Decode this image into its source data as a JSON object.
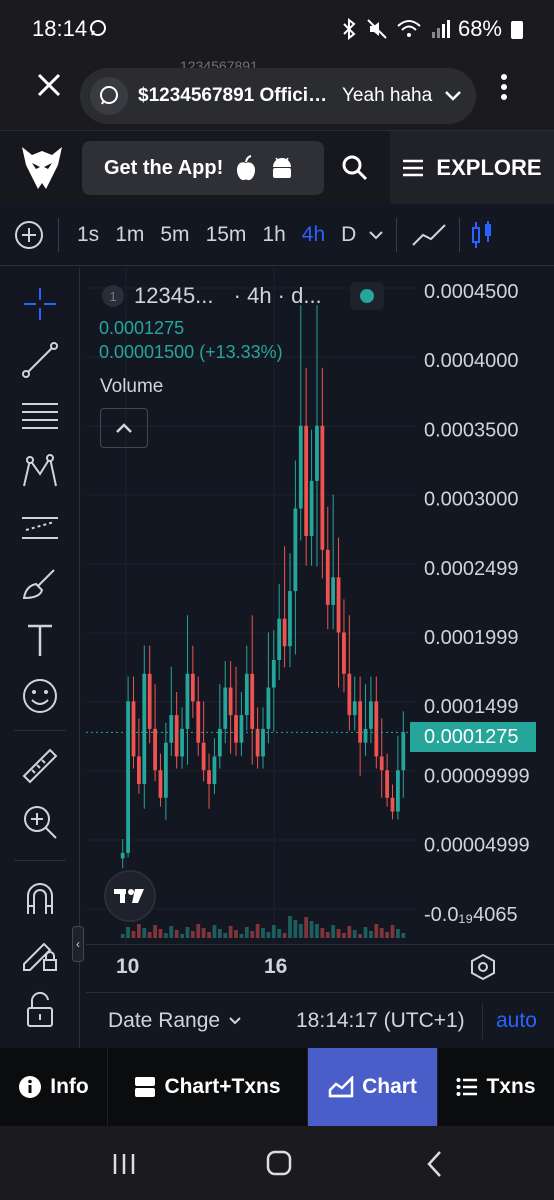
{
  "status_bar": {
    "time": "18:14",
    "battery": "68%"
  },
  "browser": {
    "ghost_text": "1234567891",
    "notification_title": "$1234567891 Officia...",
    "notification_message": "Yeah haha"
  },
  "header": {
    "get_app_label": "Get the App!",
    "explore_label": "EXPLORE"
  },
  "toolbar": {
    "timeframes": [
      "1s",
      "1m",
      "5m",
      "15m",
      "1h",
      "4h",
      "D"
    ],
    "active_timeframe": "4h"
  },
  "legend": {
    "index": "1",
    "symbol": "12345...",
    "interval_text": "· 4h · d...",
    "price": "0.0001275",
    "change": "0.00001500 (+13.33%)",
    "volume_label": "Volume"
  },
  "price_axis": {
    "labels": [
      "0.0004500",
      "0.0004000",
      "0.0003500",
      "0.0003000",
      "0.0002499",
      "0.0001999",
      "0.0001499",
      "0.00009999",
      "0.00004999",
      "-0.0₁₉4065"
    ],
    "current_price": "0.0001275"
  },
  "date_axis": {
    "labels": [
      "10",
      "16"
    ]
  },
  "footer": {
    "date_range_label": "Date Range",
    "time_label": "18:14:17 (UTC+1)",
    "auto_label": "auto"
  },
  "tabs": [
    {
      "label": "Info",
      "icon": "info-icon"
    },
    {
      "label": "Chart+Txns",
      "icon": "split-icon"
    },
    {
      "label": "Chart",
      "icon": "chart-icon",
      "active": true
    },
    {
      "label": "Txns",
      "icon": "list-icon"
    }
  ],
  "colors": {
    "up": "#26a69a",
    "down": "#ef5350",
    "accent": "#2962ff",
    "active_tab": "#4a5ec9"
  },
  "chart_data": {
    "type": "candlestick",
    "ylim": [
      0,
      0.00045
    ],
    "x_ticks": [
      "10",
      "16"
    ],
    "last_price": 0.0001275,
    "closes": [
      4e-05,
      0.00015,
      0.00011,
      9e-05,
      0.00017,
      0.00013,
      0.0001,
      8e-05,
      0.00012,
      0.00014,
      0.00011,
      0.00013,
      0.00017,
      0.00015,
      0.00012,
      0.0001,
      9e-05,
      0.00011,
      0.00013,
      0.00016,
      0.00014,
      0.00012,
      0.00014,
      0.00017,
      0.00013,
      0.00011,
      0.00013,
      0.00016,
      0.00018,
      0.00021,
      0.00019,
      0.00023,
      0.00029,
      0.00035,
      0.00027,
      0.00031,
      0.00035,
      0.00026,
      0.00022,
      0.00024,
      0.0002,
      0.00017,
      0.00014,
      0.00015,
      0.00012,
      0.00013,
      0.00015,
      0.00011,
      0.0001,
      8e-05,
      7e-05,
      0.0001,
      0.0001275
    ]
  }
}
